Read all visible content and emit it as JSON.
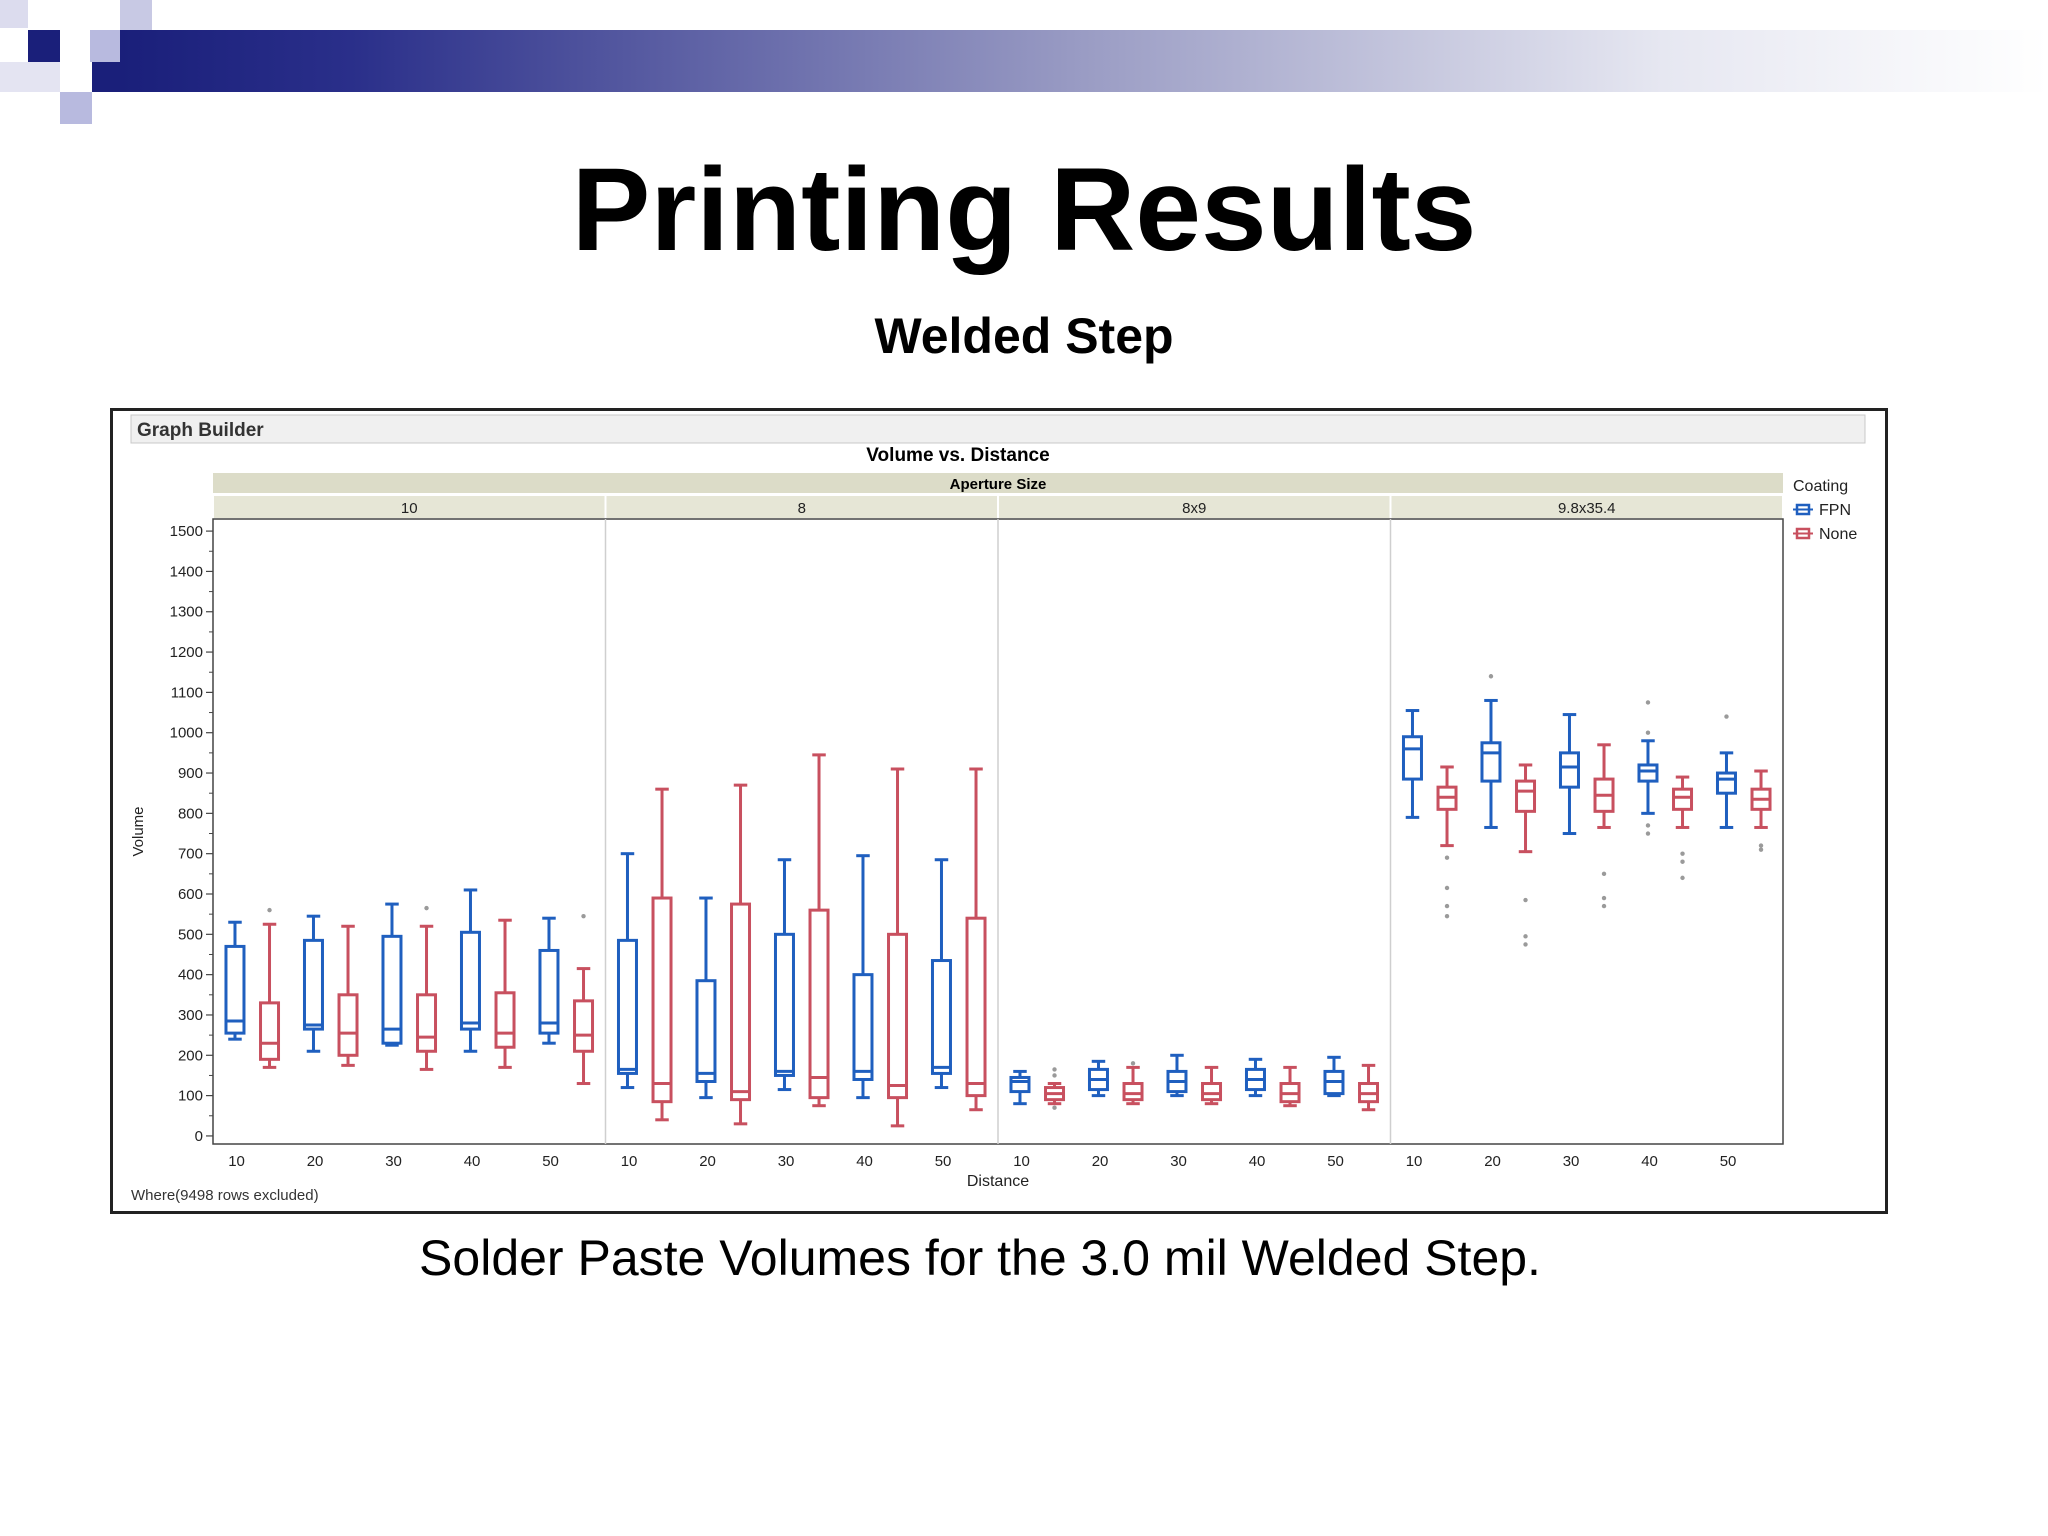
{
  "slide": {
    "title": "Printing Results",
    "subtitle": "Welded Step",
    "caption": "Solder Paste Volumes for the 3.0 mil Welded Step.",
    "colors": {
      "banner_dark": "#1a1f7a",
      "banner_light": "#ffffff",
      "square_light": "#b8badf"
    }
  },
  "graph_builder": {
    "panel_title": "Graph Builder",
    "footnote": "Where(9498 rows excluded)"
  },
  "chart_data": {
    "type": "box",
    "title": "Volume vs. Distance",
    "group_title": "Aperture Size",
    "xlabel": "Distance",
    "ylabel": "Volume",
    "ylim": [
      -20,
      1530
    ],
    "yticks": [
      0,
      100,
      200,
      300,
      400,
      500,
      600,
      700,
      800,
      900,
      1000,
      1100,
      1200,
      1300,
      1400,
      1500
    ],
    "legend_title": "Coating",
    "legend_position": "right",
    "series": [
      {
        "name": "FPN",
        "color": "#1f5fbf"
      },
      {
        "name": "None",
        "color": "#c8505f"
      }
    ],
    "panels": [
      {
        "name": "10",
        "distances": [
          "10",
          "20",
          "30",
          "40",
          "50"
        ],
        "boxes": {
          "FPN": [
            [
              240,
              255,
              285,
              470,
              530
            ],
            [
              210,
              265,
              275,
              485,
              545
            ],
            [
              225,
              230,
              265,
              495,
              575
            ],
            [
              210,
              265,
              280,
              505,
              610
            ],
            [
              230,
              255,
              280,
              460,
              540
            ]
          ],
          "None": [
            [
              170,
              190,
              230,
              330,
              525
            ],
            [
              175,
              200,
              255,
              350,
              520
            ],
            [
              165,
              210,
              245,
              350,
              520
            ],
            [
              170,
              220,
              255,
              355,
              535
            ],
            [
              130,
              210,
              250,
              335,
              415
            ]
          ]
        },
        "outliers": {
          "FPN": [
            [],
            [],
            [],
            [],
            []
          ],
          "None": [
            [
              560
            ],
            [],
            [
              565
            ],
            [],
            [
              545
            ]
          ]
        }
      },
      {
        "name": "8",
        "distances": [
          "10",
          "20",
          "30",
          "40",
          "50"
        ],
        "boxes": {
          "FPN": [
            [
              120,
              155,
              165,
              485,
              700
            ],
            [
              95,
              135,
              155,
              385,
              590
            ],
            [
              115,
              150,
              160,
              500,
              685
            ],
            [
              95,
              140,
              160,
              400,
              695
            ],
            [
              120,
              155,
              170,
              435,
              685
            ]
          ],
          "None": [
            [
              40,
              85,
              130,
              590,
              860
            ],
            [
              30,
              90,
              110,
              575,
              870
            ],
            [
              75,
              95,
              145,
              560,
              945
            ],
            [
              25,
              95,
              125,
              500,
              910
            ],
            [
              65,
              100,
              130,
              540,
              910
            ]
          ]
        },
        "outliers": {
          "FPN": [
            [],
            [],
            [],
            [],
            []
          ],
          "None": [
            [],
            [],
            [],
            [],
            []
          ]
        }
      },
      {
        "name": "8x9",
        "distances": [
          "10",
          "20",
          "30",
          "40",
          "50"
        ],
        "boxes": {
          "FPN": [
            [
              80,
              110,
              135,
              145,
              160
            ],
            [
              100,
              115,
              140,
              165,
              185
            ],
            [
              100,
              110,
              135,
              160,
              200
            ],
            [
              100,
              115,
              140,
              165,
              190
            ],
            [
              100,
              105,
              135,
              160,
              195
            ]
          ],
          "None": [
            [
              80,
              90,
              105,
              120,
              130
            ],
            [
              80,
              90,
              105,
              130,
              170
            ],
            [
              80,
              90,
              105,
              130,
              170
            ],
            [
              75,
              85,
              105,
              130,
              170
            ],
            [
              65,
              85,
              105,
              130,
              175
            ]
          ]
        },
        "outliers": {
          "FPN": [
            [],
            [],
            [],
            [],
            []
          ],
          "None": [
            [
              150,
              165,
              70
            ],
            [
              180
            ],
            [],
            [],
            []
          ]
        }
      },
      {
        "name": "9.8x35.4",
        "distances": [
          "10",
          "20",
          "30",
          "40",
          "50"
        ],
        "boxes": {
          "FPN": [
            [
              790,
              885,
              960,
              990,
              1055
            ],
            [
              765,
              880,
              950,
              975,
              1080
            ],
            [
              750,
              865,
              915,
              950,
              1045
            ],
            [
              800,
              880,
              905,
              920,
              980
            ],
            [
              765,
              850,
              885,
              900,
              950
            ]
          ],
          "None": [
            [
              720,
              810,
              840,
              865,
              915
            ],
            [
              705,
              805,
              855,
              880,
              920
            ],
            [
              765,
              805,
              845,
              885,
              970
            ],
            [
              765,
              810,
              840,
              860,
              890
            ],
            [
              765,
              810,
              835,
              860,
              905
            ]
          ]
        },
        "outliers": {
          "FPN": [
            [],
            [
              1140
            ],
            [],
            [
              1075,
              1000,
              770,
              750
            ],
            [
              1040
            ]
          ],
          "None": [
            [
              690,
              615,
              570,
              545
            ],
            [
              585,
              495,
              475
            ],
            [
              650,
              590,
              570
            ],
            [
              700,
              680,
              640
            ],
            [
              720,
              710
            ]
          ]
        }
      }
    ]
  }
}
